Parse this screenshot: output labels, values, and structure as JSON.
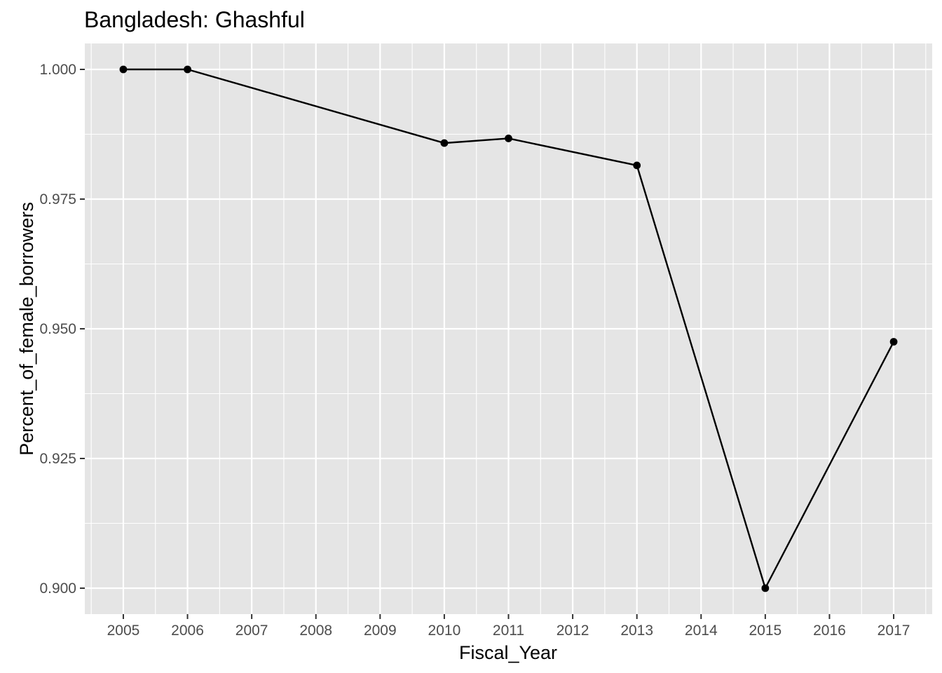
{
  "chart_data": {
    "type": "line",
    "title": "Bangladesh:  Ghashful",
    "xlabel": "Fiscal_Year",
    "ylabel": "Percent_of_female_borrowers",
    "x_ticks": [
      2005,
      2006,
      2007,
      2008,
      2009,
      2010,
      2011,
      2012,
      2013,
      2014,
      2015,
      2016,
      2017
    ],
    "y_ticks": [
      "0.900",
      "0.925",
      "0.950",
      "0.975",
      "1.000"
    ],
    "xlim": [
      2004.4,
      2017.6
    ],
    "ylim": [
      0.895,
      1.005
    ],
    "grid": true,
    "colors": {
      "panel": "#e5e5e5",
      "line": "#000000",
      "point": "#000000"
    },
    "series": [
      {
        "x": [
          2005,
          2006,
          2010,
          2011,
          2013,
          2015,
          2017
        ],
        "y": [
          1.0,
          1.0,
          0.9858,
          0.9867,
          0.9815,
          0.9,
          0.9475
        ]
      }
    ]
  }
}
